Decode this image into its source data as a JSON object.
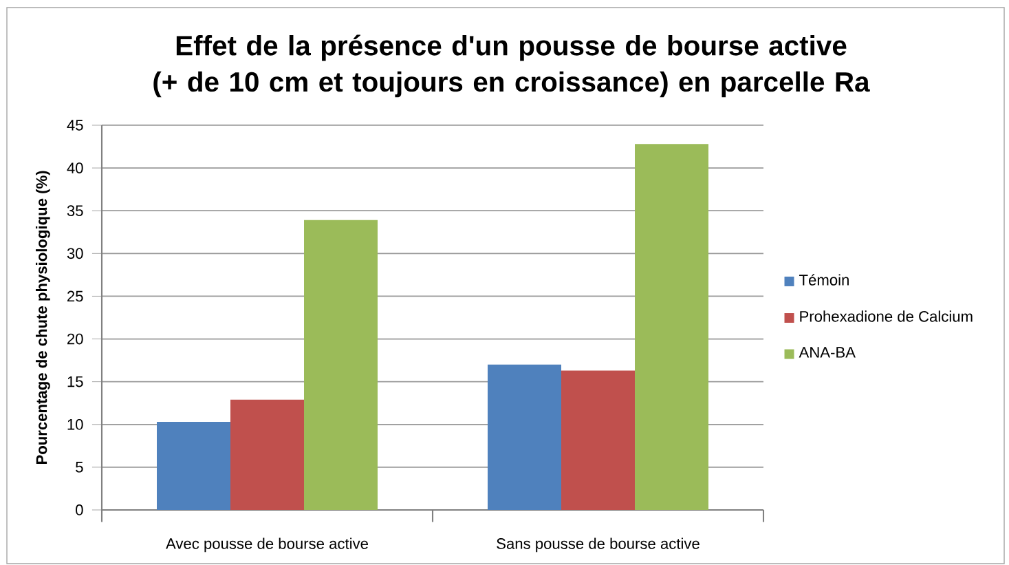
{
  "chart_data": {
    "type": "bar",
    "title": "Effet de la présence d'un pousse de bourse active\n(+ de 10 cm et toujours en croissance) en parcelle Ra",
    "ylabel": "Pourcentage de chute physiologique (%)",
    "categories": [
      "Avec pousse de bourse active",
      "Sans pousse de bourse active"
    ],
    "series": [
      {
        "name": "Témoin",
        "color": "#4f81bd",
        "values": [
          10.3,
          17.0
        ]
      },
      {
        "name": "Prohexadione de Calcium",
        "color": "#c0504d",
        "values": [
          12.9,
          16.3
        ]
      },
      {
        "name": "ANA-BA",
        "color": "#9bbb59",
        "values": [
          33.9,
          42.8
        ]
      }
    ],
    "ylim": [
      0,
      45
    ],
    "yticks": [
      0,
      5,
      10,
      15,
      20,
      25,
      30,
      35,
      40,
      45
    ],
    "grid": "y",
    "legend": "right"
  }
}
